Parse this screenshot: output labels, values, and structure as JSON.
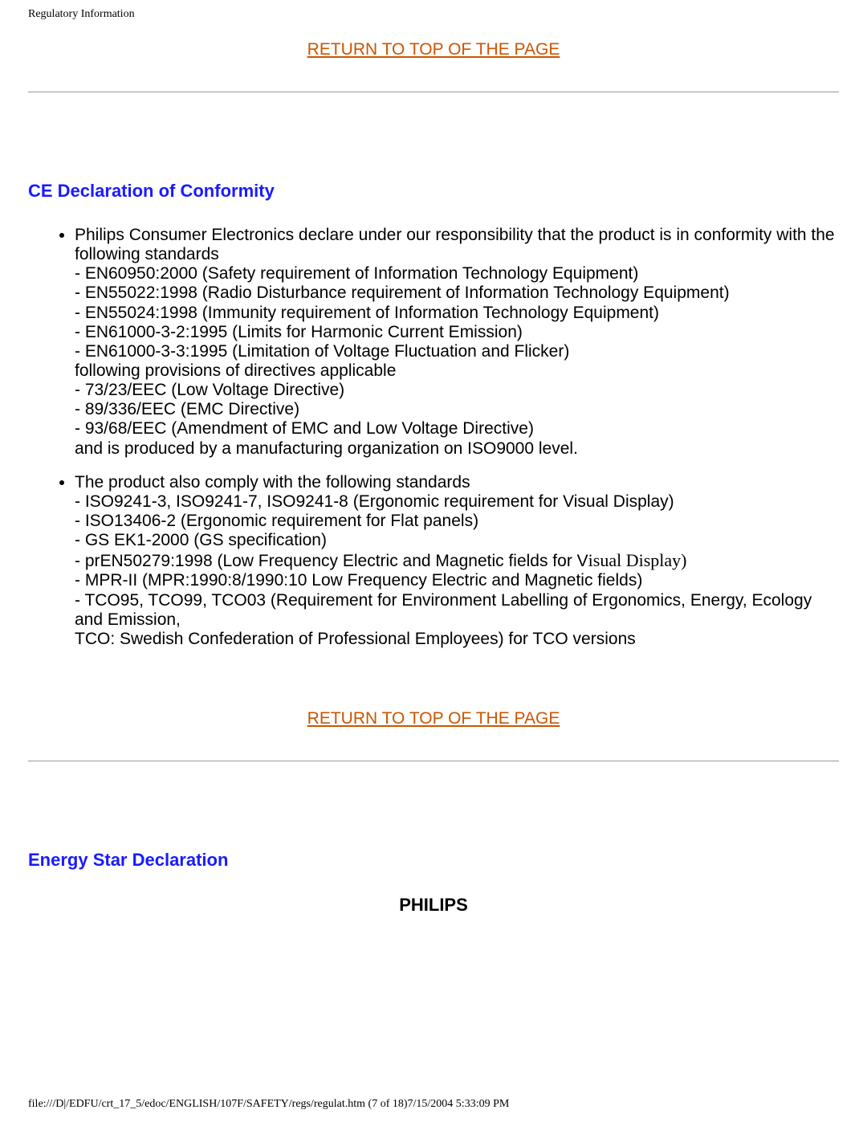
{
  "header_title": "Regulatory Information",
  "return_link_1": "RETURN TO TOP OF THE PAGE",
  "return_link_2": "RETURN TO TOP OF THE PAGE",
  "section1": {
    "heading": "CE Declaration of Conformity",
    "bullet1": {
      "intro": "Philips Consumer Electronics declare under our responsibility that the product is in conformity with the following standards",
      "l1": "- EN60950:2000 (Safety requirement of Information Technology Equipment)",
      "l2": "- EN55022:1998 (Radio Disturbance requirement of Information Technology Equipment)",
      "l3": "- EN55024:1998 (Immunity requirement of Information Technology Equipment)",
      "l4": "- EN61000-3-2:1995 (Limits for Harmonic Current Emission)",
      "l5": "- EN61000-3-3:1995 (Limitation of Voltage Fluctuation and Flicker)",
      "l6": "following provisions of directives applicable",
      "l7": "- 73/23/EEC (Low Voltage Directive)",
      "l8": "- 89/336/EEC (EMC Directive)",
      "l9": "- 93/68/EEC (Amendment of EMC and Low Voltage Directive)",
      "l10": "and is produced by a manufacturing organization on ISO9000 level."
    },
    "bullet2": {
      "intro": "The product also comply with the following standards",
      "l1": "- ISO9241-3, ISO9241-7, ISO9241-8 (Ergonomic requirement for Visual Display)",
      "l2": "- ISO13406-2 (Ergonomic requirement for Flat panels)",
      "l3": "- GS EK1-2000 (GS specification)",
      "l4a": "- prEN50279:1998 (Low Frequency Electric and Magnetic fields for V",
      "l4b": "isual Display)",
      "l5": "- MPR-II (MPR:1990:8/1990:10 Low Frequency Electric and Magnetic fields)",
      "l6": "- TCO95, TCO99, TCO03 (Requirement for Environment Labelling of Ergonomics, Energy, Ecology and Emission,",
      "l7": "TCO: Swedish Confederation of Professional Employees) for TCO versions"
    }
  },
  "section2": {
    "heading": "Energy Star Declaration",
    "philips": "PHILIPS"
  },
  "footer_text": "file:///D|/EDFU/crt_17_5/edoc/ENGLISH/107F/SAFETY/regs/regulat.htm (7 of 18)7/15/2004 5:33:09 PM",
  "colors": {
    "link_color": "#cc5500",
    "heading_color": "#1a1aff",
    "text_color": "#000000",
    "background": "#ffffff",
    "hr_color": "#999999"
  }
}
